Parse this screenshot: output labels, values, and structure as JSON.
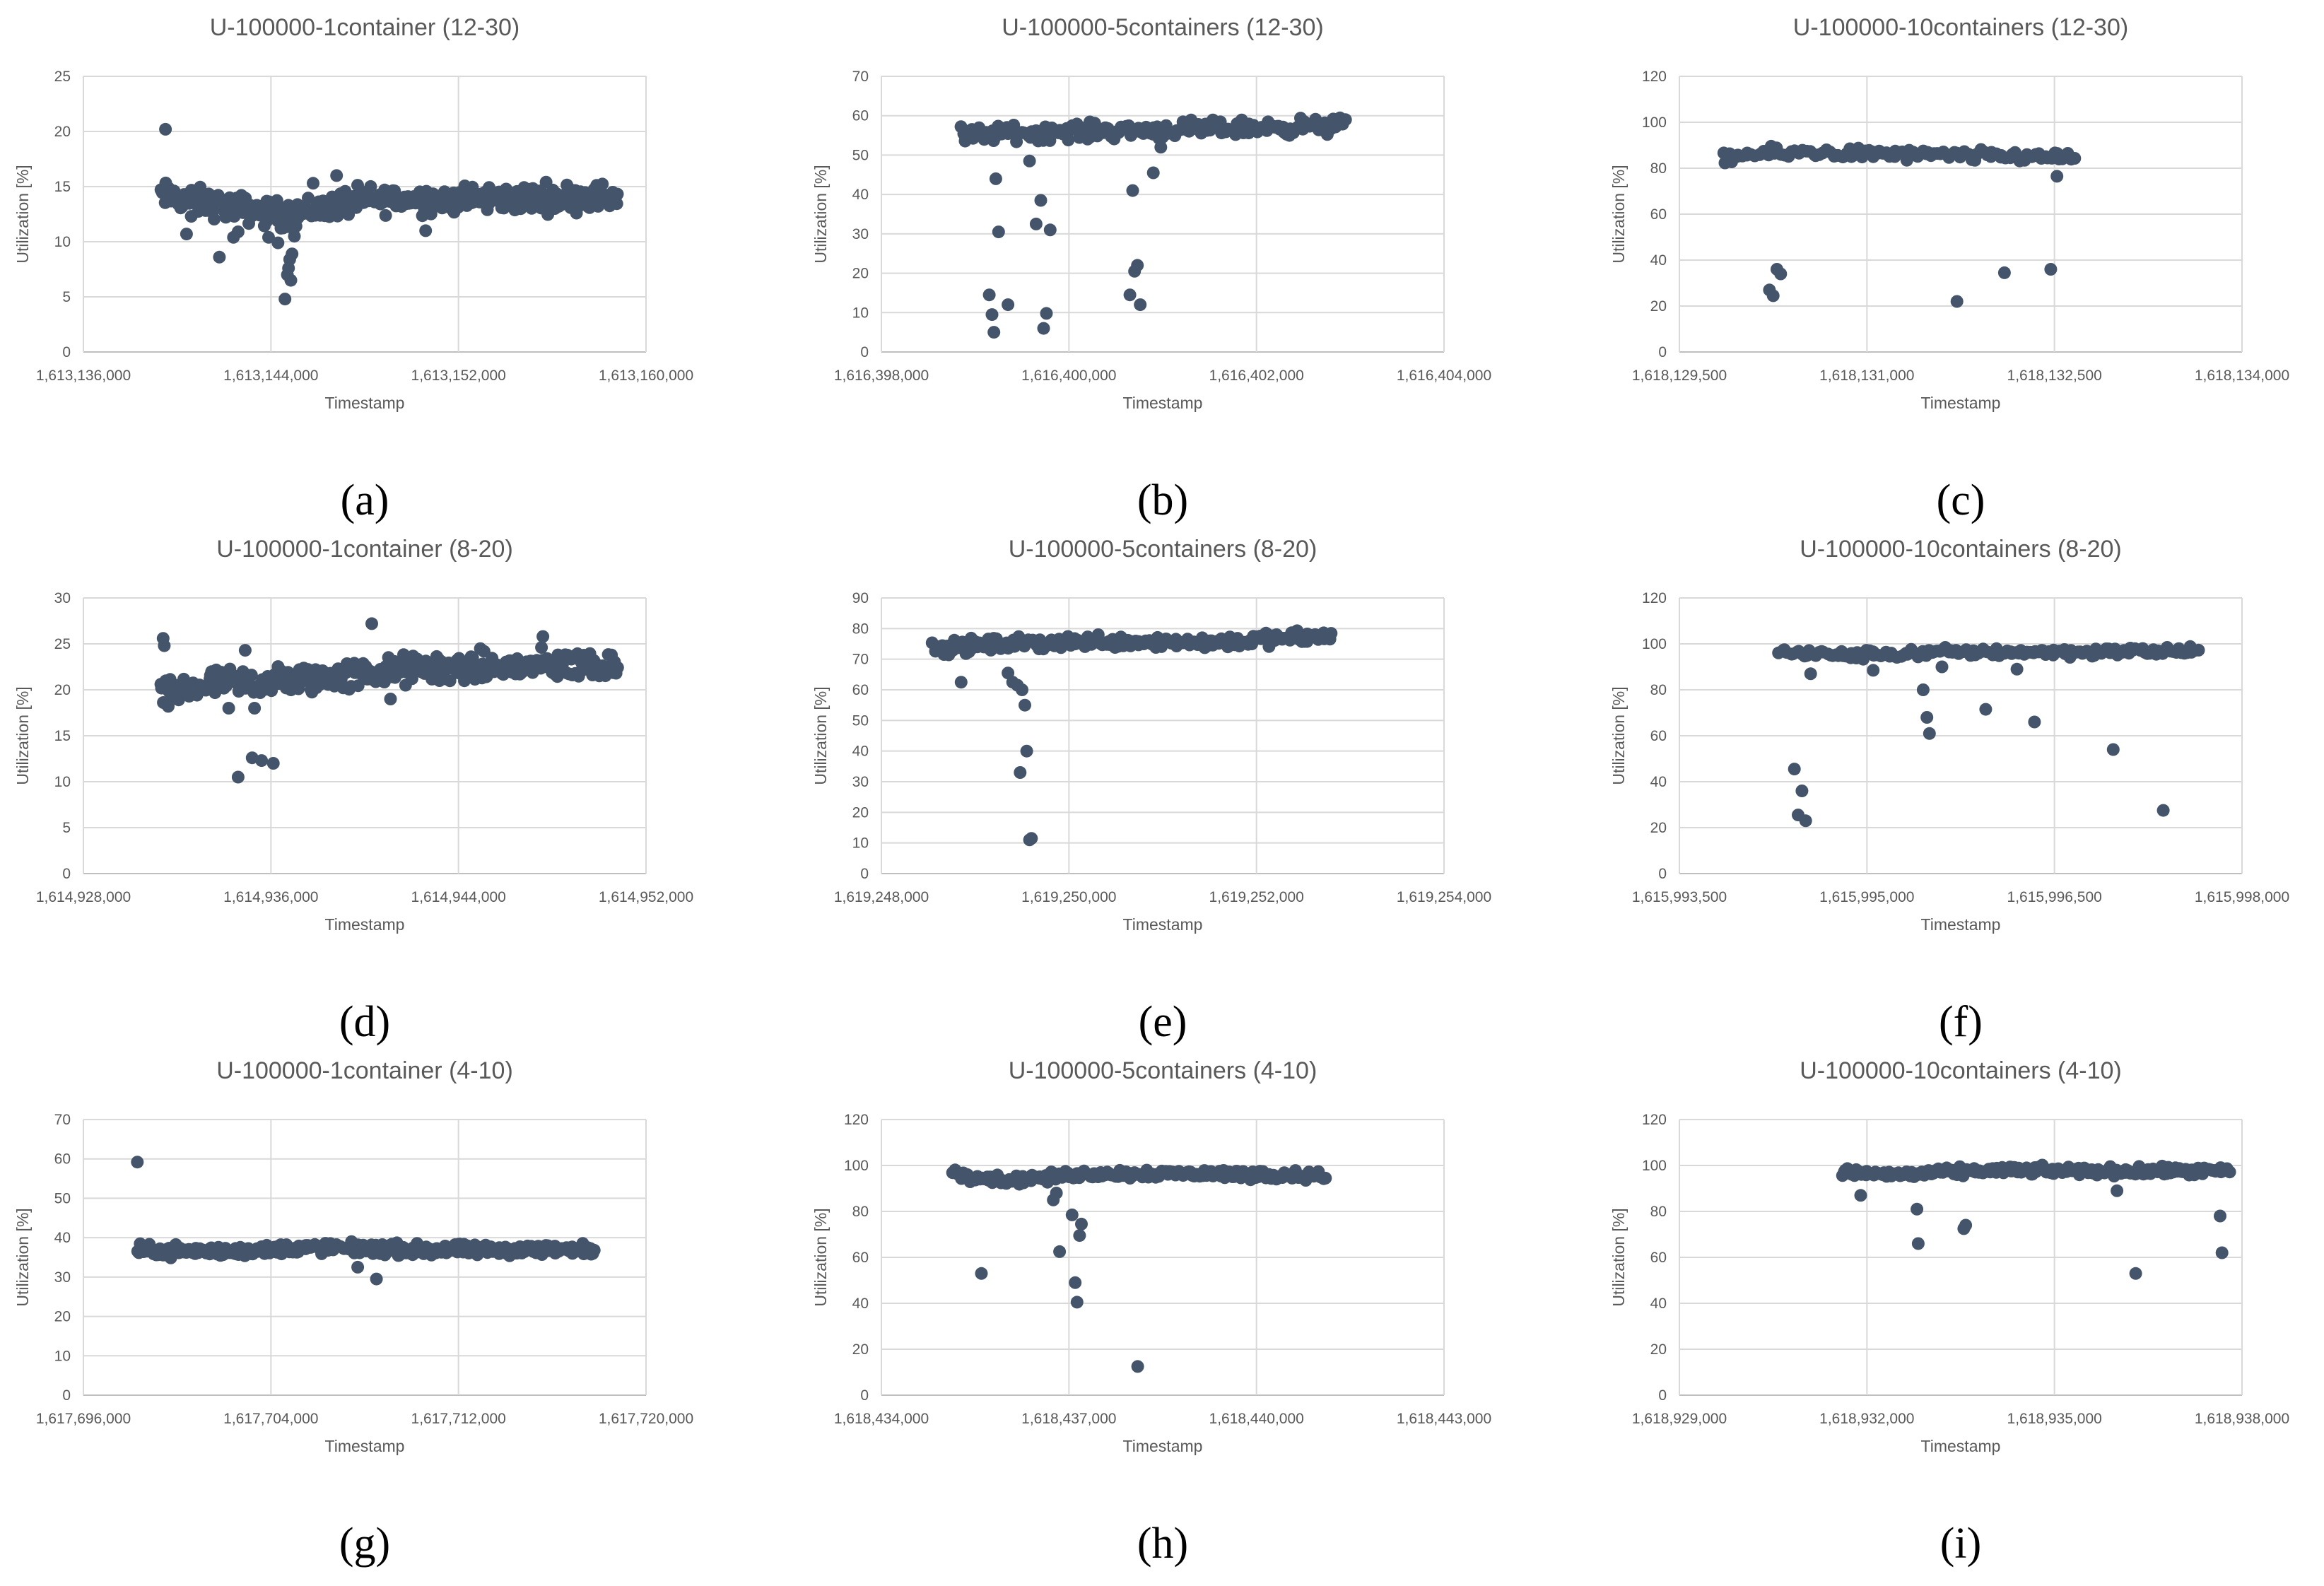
{
  "chart_data": [
    {
      "type": "scatter",
      "title": "U-100000-1container (12-30)",
      "panel_label": "(a)",
      "xlabel": "Timestamp",
      "ylabel": "Utilization [%]",
      "xlim": [
        1613136000,
        1613160000
      ],
      "ylim": [
        0,
        25
      ],
      "x_ticks": [
        "1,613,136,000",
        "1,613,144,000",
        "1,613,152,000",
        "1,613,160,000"
      ],
      "y_ticks": [
        "0",
        "5",
        "10",
        "15",
        "20",
        "25"
      ],
      "color": "#44546a",
      "x": [
        1613139500,
        1613140400,
        1613140600,
        1613141800,
        1613142400,
        1613142600,
        1613143200,
        1613143400,
        1613143900,
        1613144300,
        1613144600,
        1613144700,
        1613144750,
        1613144800,
        1613144850,
        1613144900,
        1613145000,
        1613145800,
        1613146800,
        1613150600
      ],
      "y": [
        20.2,
        10.7,
        12.3,
        8.6,
        10.4,
        10.9,
        12.4,
        13.3,
        10.4,
        9.9,
        4.8,
        7.0,
        7.6,
        8.4,
        6.5,
        8.9,
        10.5,
        15.3,
        16.0,
        11.0
      ],
      "band": {
        "x_start": 1613139300,
        "x_end": 1613158800,
        "center_start": 14.2,
        "center_end": 14.1,
        "spread": 1.2,
        "count": 340,
        "center_breaks": [
          [
            1613141000,
            13.6
          ],
          [
            1613144500,
            12.4
          ],
          [
            1613148000,
            13.8
          ]
        ]
      }
    },
    {
      "type": "scatter",
      "title": "U-100000-5containers (12-30)",
      "panel_label": "(b)",
      "xlabel": "Timestamp",
      "ylabel": "Utilization [%]",
      "xlim": [
        1616398000,
        1616404000
      ],
      "ylim": [
        0,
        70
      ],
      "x_ticks": [
        "1,616,398,000",
        "1,616,400,000",
        "1,616,402,000",
        "1,616,404,000"
      ],
      "y_ticks": [
        "0",
        "10",
        "20",
        "30",
        "40",
        "50",
        "60",
        "70"
      ],
      "color": "#44546a",
      "x": [
        1616399150,
        1616399180,
        1616399200,
        1616399220,
        1616399250,
        1616399350,
        1616399580,
        1616399650,
        1616399700,
        1616399730,
        1616399760,
        1616399800,
        1616400650,
        1616400680,
        1616400700,
        1616400730,
        1616400760,
        1616400900,
        1616400980
      ],
      "y": [
        14.5,
        9.5,
        5.0,
        44.0,
        30.5,
        12.0,
        48.5,
        32.5,
        38.5,
        6.0,
        9.8,
        31.0,
        14.5,
        41.0,
        20.5,
        22.0,
        12.0,
        45.5,
        52.0
      ],
      "band": {
        "x_start": 1616398850,
        "x_end": 1616402950,
        "center_start": 54.5,
        "center_end": 57.5,
        "spread": 2.0,
        "count": 190,
        "center_breaks": [
          [
            1616399200,
            55.5
          ],
          [
            1616400000,
            56.0
          ],
          [
            1616401200,
            56.5
          ]
        ]
      }
    },
    {
      "type": "scatter",
      "title": "U-100000-10containers (12-30)",
      "panel_label": "(c)",
      "xlabel": "Timestamp",
      "ylabel": "Utilization [%]",
      "xlim": [
        1618129500,
        1618134000
      ],
      "ylim": [
        0,
        120
      ],
      "x_ticks": [
        "1,618,129,500",
        "1,618,131,000",
        "1,618,132,500",
        "1,618,134,000"
      ],
      "y_ticks": [
        "0",
        "20",
        "40",
        "60",
        "80",
        "100",
        "120"
      ],
      "color": "#44546a",
      "x": [
        1618130220,
        1618130250,
        1618130280,
        1618130310,
        1618131720,
        1618132100,
        1618132470,
        1618132520
      ],
      "y": [
        27.0,
        24.5,
        36.0,
        34.0,
        22.0,
        34.5,
        36.0,
        76.5
      ],
      "band": {
        "x_start": 1618129850,
        "x_end": 1618132650,
        "center_start": 84.0,
        "center_end": 85.0,
        "spread": 2.5,
        "count": 110,
        "center_breaks": [
          [
            1618130050,
            86.0
          ],
          [
            1618130600,
            87.0
          ],
          [
            1618131500,
            85.5
          ]
        ]
      }
    },
    {
      "type": "scatter",
      "title": "U-100000-1container (8-20)",
      "panel_label": "(d)",
      "xlabel": "Timestamp",
      "ylabel": "Utilization [%]",
      "xlim": [
        1614928000,
        1614952000
      ],
      "ylim": [
        0,
        30
      ],
      "x_ticks": [
        "1,614,928,000",
        "1,614,936,000",
        "1,614,944,000",
        "1,614,952,000"
      ],
      "y_ticks": [
        "0",
        "5",
        "10",
        "15",
        "20",
        "25",
        "30"
      ],
      "color": "#44546a",
      "x": [
        1614931400,
        1614931450,
        1614934600,
        1614935200,
        1614935600,
        1614936100,
        1614934900,
        1614940300,
        1614941100,
        1614947600,
        1614934200,
        1614935300
      ],
      "y": [
        25.6,
        24.8,
        10.5,
        12.6,
        12.3,
        12.0,
        24.3,
        27.2,
        19.0,
        25.8,
        18.0,
        18.0
      ],
      "band": {
        "x_start": 1614931300,
        "x_end": 1614950800,
        "center_start": 19.0,
        "center_end": 22.8,
        "spread": 1.6,
        "count": 330,
        "center_breaks": [
          [
            1614933000,
            20.5
          ],
          [
            1614937000,
            21.0
          ],
          [
            1614942000,
            22.2
          ]
        ]
      }
    },
    {
      "type": "scatter",
      "title": "U-100000-5containers (8-20)",
      "panel_label": "(e)",
      "xlabel": "Timestamp",
      "ylabel": "Utilization [%]",
      "xlim": [
        1619248000,
        1619254000
      ],
      "ylim": [
        0,
        90
      ],
      "x_ticks": [
        "1,619,248,000",
        "1,619,250,000",
        "1,619,252,000",
        "1,619,254,000"
      ],
      "y_ticks": [
        "0",
        "10",
        "20",
        "30",
        "40",
        "50",
        "60",
        "70",
        "80",
        "90"
      ],
      "color": "#44546a",
      "x": [
        1619248850,
        1619249350,
        1619249400,
        1619249450,
        1619249480,
        1619249500,
        1619249530,
        1619249550,
        1619249580,
        1619249600
      ],
      "y": [
        62.5,
        65.5,
        62.5,
        61.5,
        33.0,
        60.0,
        55.0,
        40.0,
        11.0,
        11.5
      ],
      "band": {
        "x_start": 1619248550,
        "x_end": 1619252800,
        "center_start": 73.0,
        "center_end": 77.5,
        "spread": 2.2,
        "count": 190,
        "center_breaks": [
          [
            1619249000,
            74.5
          ],
          [
            1619250300,
            76.0
          ],
          [
            1619251500,
            75.5
          ]
        ]
      }
    },
    {
      "type": "scatter",
      "title": "U-100000-10containers (8-20)",
      "panel_label": "(f)",
      "xlabel": "Timestamp",
      "ylabel": "Utilization [%]",
      "xlim": [
        1615993500,
        1615998000
      ],
      "ylim": [
        0,
        120
      ],
      "x_ticks": [
        "1,615,993,500",
        "1,615,995,000",
        "1,615,996,500",
        "1,615,998,000"
      ],
      "y_ticks": [
        "0",
        "20",
        "40",
        "60",
        "80",
        "100",
        "120"
      ],
      "color": "#44546a",
      "x": [
        1615994420,
        1615994450,
        1615994480,
        1615994510,
        1615995450,
        1615995480,
        1615995500,
        1615995950,
        1615996340,
        1615996970,
        1615997370,
        1615994550,
        1615995050,
        1615995600,
        1615996200
      ],
      "y": [
        45.5,
        25.5,
        36.0,
        23.0,
        80.0,
        68.0,
        61.0,
        71.5,
        66.0,
        54.0,
        27.5,
        87.0,
        88.5,
        90.0,
        89.0
      ],
      "band": {
        "x_start": 1615994300,
        "x_end": 1615997650,
        "center_start": 96.5,
        "center_end": 97.0,
        "spread": 2.0,
        "count": 150,
        "center_breaks": [
          [
            1615994800,
            95.0
          ],
          [
            1615995800,
            96.5
          ],
          [
            1615996800,
            96.5
          ]
        ]
      }
    },
    {
      "type": "scatter",
      "title": "U-100000-1container (4-10)",
      "panel_label": "(g)",
      "xlabel": "Timestamp",
      "ylabel": "Utilization [%]",
      "xlim": [
        1617696000,
        1617720000
      ],
      "ylim": [
        0,
        70
      ],
      "x_ticks": [
        "1,617,696,000",
        "1,617,704,000",
        "1,617,712,000",
        "1,617,720,000"
      ],
      "y_ticks": [
        "0",
        "10",
        "20",
        "30",
        "40",
        "50",
        "60",
        "70"
      ],
      "color": "#44546a",
      "x": [
        1617698300,
        1617708500,
        1617707700
      ],
      "y": [
        59.2,
        29.5,
        32.5
      ],
      "band": {
        "x_start": 1617698300,
        "x_end": 1617717800,
        "center_start": 36.8,
        "center_end": 37.0,
        "spread": 1.4,
        "count": 320,
        "center_breaks": [
          [
            1617702000,
            36.5
          ],
          [
            1617706000,
            37.5
          ],
          [
            1617711000,
            36.8
          ]
        ]
      }
    },
    {
      "type": "scatter",
      "title": "U-100000-5containers (4-10)",
      "panel_label": "(h)",
      "xlabel": "Timestamp",
      "ylabel": "Utilization [%]",
      "xlim": [
        1618434000,
        1618443000
      ],
      "ylim": [
        0,
        120
      ],
      "x_ticks": [
        "1,618,434,000",
        "1,618,437,000",
        "1,618,440,000",
        "1,618,443,000"
      ],
      "y_ticks": [
        "0",
        "20",
        "40",
        "60",
        "80",
        "100",
        "120"
      ],
      "color": "#44546a",
      "x": [
        1618435600,
        1618436750,
        1618436800,
        1618436850,
        1618437050,
        1618437100,
        1618437130,
        1618437170,
        1618437200,
        1618438100
      ],
      "y": [
        53.0,
        85.0,
        88.0,
        62.5,
        78.5,
        49.0,
        40.5,
        69.5,
        74.5,
        12.5
      ],
      "band": {
        "x_start": 1618435150,
        "x_end": 1618441100,
        "center_start": 96.5,
        "center_end": 95.5,
        "spread": 2.0,
        "count": 180,
        "center_breaks": [
          [
            1618436000,
            93.5
          ],
          [
            1618437400,
            96.5
          ],
          [
            1618439000,
            96.5
          ]
        ]
      }
    },
    {
      "type": "scatter",
      "title": "U-100000-10containers (4-10)",
      "panel_label": "(i)",
      "xlabel": "Timestamp",
      "ylabel": "Utilization [%]",
      "xlim": [
        1618929000,
        1618938000
      ],
      "ylim": [
        0,
        120
      ],
      "x_ticks": [
        "1,618,929,000",
        "1,618,932,000",
        "1,618,935,000",
        "1,618,938,000"
      ],
      "y_ticks": [
        "0",
        "20",
        "40",
        "60",
        "80",
        "100",
        "120"
      ],
      "color": "#44546a",
      "x": [
        1618932800,
        1618932820,
        1618933550,
        1618933580,
        1618936300,
        1618937650,
        1618937680,
        1618931900,
        1618936000
      ],
      "y": [
        81.0,
        66.0,
        72.5,
        74.0,
        53.0,
        78.0,
        62.0,
        87.0,
        89.0
      ],
      "band": {
        "x_start": 1618931600,
        "x_end": 1618937800,
        "center_start": 97.0,
        "center_end": 97.5,
        "spread": 1.8,
        "count": 200,
        "center_breaks": [
          [
            1618932500,
            96.0
          ],
          [
            1618934000,
            98.0
          ],
          [
            1618936000,
            97.5
          ]
        ]
      }
    }
  ]
}
